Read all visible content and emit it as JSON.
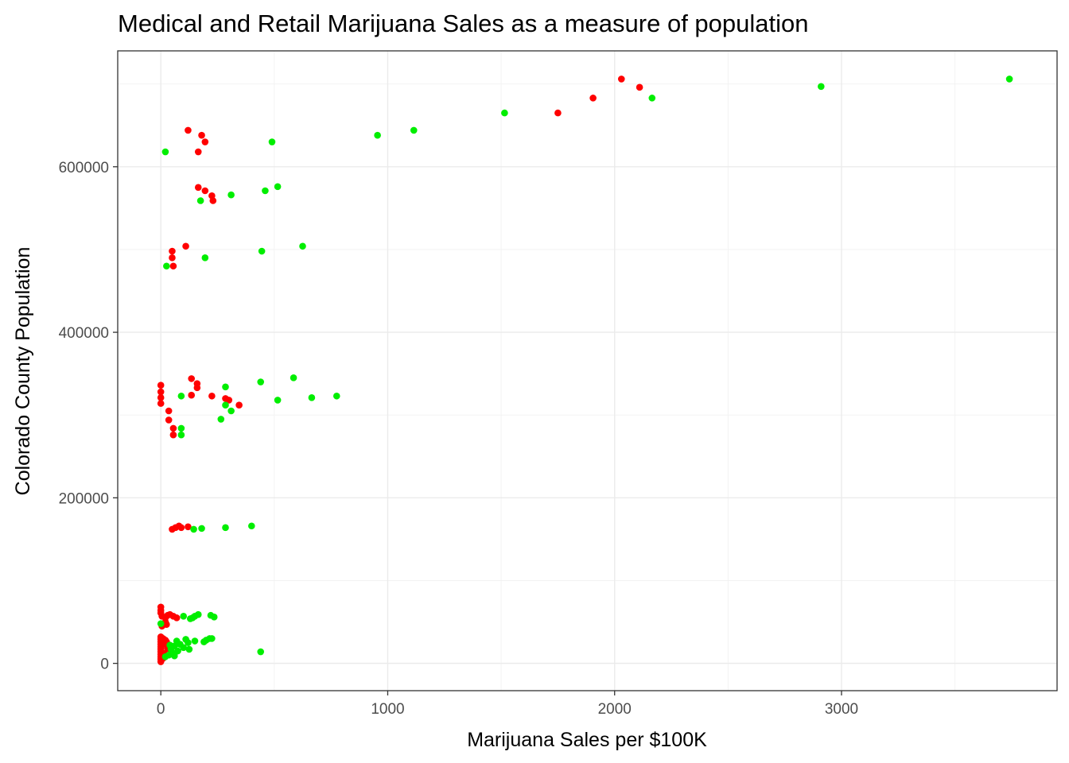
{
  "chart_data": {
    "type": "scatter",
    "title": "Medical and Retail Marijuana Sales as a measure of population",
    "xlabel": "Marijuana Sales per $100K",
    "ylabel": "Colorado County Population",
    "xlim": [
      -190,
      3950
    ],
    "ylim": [
      -33000,
      740000
    ],
    "x_ticks": [
      0,
      1000,
      2000,
      3000
    ],
    "x_tick_labels": [
      "0",
      "1000",
      "2000",
      "3000"
    ],
    "y_ticks": [
      0,
      200000,
      400000,
      600000
    ],
    "y_tick_labels": [
      "0",
      "200000",
      "400000",
      "600000"
    ],
    "x_minor": [
      500,
      1500,
      2500,
      3500
    ],
    "y_minor": [
      100000,
      300000,
      500000,
      700000
    ],
    "grid": true,
    "legend": "none",
    "colors": {
      "red_series": "#ff0000",
      "green_series": "#00ee00"
    },
    "series": [
      {
        "color": "#ff0000",
        "points": [
          [
            2030,
            706000
          ],
          [
            2110,
            696000
          ],
          [
            1905,
            683000
          ],
          [
            1750,
            665000
          ],
          [
            120,
            644000
          ],
          [
            180,
            638000
          ],
          [
            195,
            630000
          ],
          [
            165,
            618000
          ],
          [
            165,
            575000
          ],
          [
            195,
            571000
          ],
          [
            225,
            565000
          ],
          [
            230,
            559000
          ],
          [
            110,
            504000
          ],
          [
            50,
            498000
          ],
          [
            50,
            490000
          ],
          [
            55,
            480000
          ],
          [
            0,
            336000
          ],
          [
            0,
            328000
          ],
          [
            0,
            321000
          ],
          [
            0,
            314000
          ],
          [
            135,
            344000
          ],
          [
            160,
            338000
          ],
          [
            160,
            333000
          ],
          [
            135,
            324000
          ],
          [
            225,
            323000
          ],
          [
            285,
            320000
          ],
          [
            300,
            318000
          ],
          [
            345,
            312000
          ],
          [
            35,
            305000
          ],
          [
            35,
            294000
          ],
          [
            55,
            284000
          ],
          [
            55,
            276000
          ],
          [
            50,
            162000
          ],
          [
            65,
            164000
          ],
          [
            80,
            166000
          ],
          [
            90,
            164000
          ],
          [
            120,
            165000
          ],
          [
            0,
            68000
          ],
          [
            0,
            64000
          ],
          [
            0,
            61000
          ],
          [
            5,
            57000
          ],
          [
            20,
            55000
          ],
          [
            30,
            58000
          ],
          [
            40,
            59000
          ],
          [
            55,
            57000
          ],
          [
            70,
            55000
          ],
          [
            20,
            50000
          ],
          [
            25,
            47000
          ],
          [
            5,
            45000
          ],
          [
            0,
            32000
          ],
          [
            0,
            29000
          ],
          [
            0,
            26000
          ],
          [
            0,
            23000
          ],
          [
            0,
            20000
          ],
          [
            0,
            17000
          ],
          [
            0,
            14000
          ],
          [
            0,
            11000
          ],
          [
            0,
            8000
          ],
          [
            0,
            5000
          ],
          [
            0,
            2000
          ],
          [
            10,
            30000
          ],
          [
            20,
            28000
          ],
          [
            25,
            22000
          ],
          [
            30,
            18000
          ],
          [
            15,
            12000
          ],
          [
            10,
            6000
          ],
          [
            25,
            26000
          ]
        ]
      },
      {
        "color": "#00ee00",
        "points": [
          [
            3740,
            706000
          ],
          [
            2910,
            697000
          ],
          [
            2165,
            683000
          ],
          [
            1515,
            665000
          ],
          [
            1115,
            644000
          ],
          [
            955,
            638000
          ],
          [
            490,
            630000
          ],
          [
            20,
            618000
          ],
          [
            515,
            576000
          ],
          [
            460,
            571000
          ],
          [
            310,
            566000
          ],
          [
            175,
            559000
          ],
          [
            625,
            504000
          ],
          [
            445,
            498000
          ],
          [
            195,
            490000
          ],
          [
            25,
            480000
          ],
          [
            585,
            345000
          ],
          [
            440,
            340000
          ],
          [
            285,
            334000
          ],
          [
            775,
            323000
          ],
          [
            665,
            321000
          ],
          [
            515,
            318000
          ],
          [
            285,
            312000
          ],
          [
            310,
            305000
          ],
          [
            265,
            295000
          ],
          [
            90,
            323000
          ],
          [
            90,
            284000
          ],
          [
            90,
            276000
          ],
          [
            400,
            166000
          ],
          [
            285,
            164000
          ],
          [
            180,
            163000
          ],
          [
            145,
            162000
          ],
          [
            165,
            59000
          ],
          [
            150,
            57000
          ],
          [
            140,
            55000
          ],
          [
            100,
            57000
          ],
          [
            220,
            58000
          ],
          [
            235,
            56000
          ],
          [
            130,
            54000
          ],
          [
            0,
            48000
          ],
          [
            225,
            30000
          ],
          [
            200,
            28000
          ],
          [
            215,
            30000
          ],
          [
            150,
            27000
          ],
          [
            120,
            25000
          ],
          [
            85,
            23000
          ],
          [
            60,
            21000
          ],
          [
            45,
            17000
          ],
          [
            100,
            19000
          ],
          [
            125,
            17000
          ],
          [
            75,
            15000
          ],
          [
            60,
            12000
          ],
          [
            35,
            10000
          ],
          [
            20,
            8000
          ],
          [
            60,
            9000
          ],
          [
            40,
            22000
          ],
          [
            440,
            14000
          ],
          [
            190,
            26000
          ],
          [
            110,
            29000
          ],
          [
            70,
            27000
          ]
        ]
      }
    ]
  }
}
